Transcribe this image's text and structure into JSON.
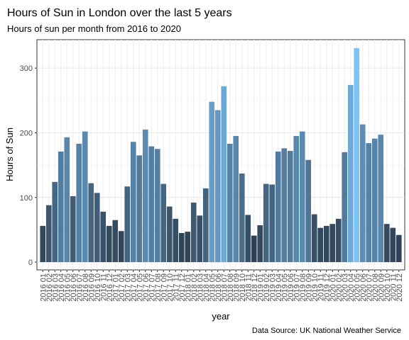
{
  "chart_data": {
    "type": "bar",
    "title": "Hours of Sun in London over the last 5 years",
    "subtitle": "Hours of sun per month from 2016 to 2020",
    "xlabel": "year",
    "ylabel": "Hours of Sun",
    "caption": "Data Source: UK National Weather Service",
    "ylim": [
      -12,
      344
    ],
    "yticks": [
      0,
      100,
      200,
      300
    ],
    "grid": true,
    "legend": "none",
    "fill_scale": {
      "low": "#2f4255",
      "high": "#7cc3f8",
      "min": 41,
      "max": 331
    },
    "categories": [
      "2016 01",
      "2016 02",
      "2016 03",
      "2016 04",
      "2016 05",
      "2016 06",
      "2016 07",
      "2016 08",
      "2016 09",
      "2016 10",
      "2016 11",
      "2016 12",
      "2017 01",
      "2017 02",
      "2017 03",
      "2017 04",
      "2017 05",
      "2017 06",
      "2017 07",
      "2017 08",
      "2017 09",
      "2017 10",
      "2017 11",
      "2017 12",
      "2018 01",
      "2018 02",
      "2018 03",
      "2018 04",
      "2018 05",
      "2018 06",
      "2018 07",
      "2018 08",
      "2018 09",
      "2018 10",
      "2018 11",
      "2018 12",
      "2019 01",
      "2019 02",
      "2019 03",
      "2019 04",
      "2019 05",
      "2019 06",
      "2019 07",
      "2019 08",
      "2019 09",
      "2019 10",
      "2019 11",
      "2019 12",
      "2020 01",
      "2020 02",
      "2020 03",
      "2020 04",
      "2020 05",
      "2020 06",
      "2020 07",
      "2020 08",
      "2020 09",
      "2020 10",
      "2020 11",
      "2020 12"
    ],
    "values": [
      56,
      88,
      124,
      171,
      193,
      102,
      183,
      202,
      122,
      107,
      78,
      56,
      65,
      48,
      117,
      186,
      165,
      205,
      179,
      175,
      121,
      86,
      67,
      45,
      47,
      92,
      72,
      114,
      248,
      235,
      272,
      183,
      195,
      137,
      73,
      41,
      57,
      121,
      120,
      171,
      176,
      172,
      195,
      202,
      158,
      74,
      53,
      56,
      59,
      67,
      170,
      274,
      331,
      213,
      184,
      191,
      197,
      59,
      53,
      42
    ]
  }
}
